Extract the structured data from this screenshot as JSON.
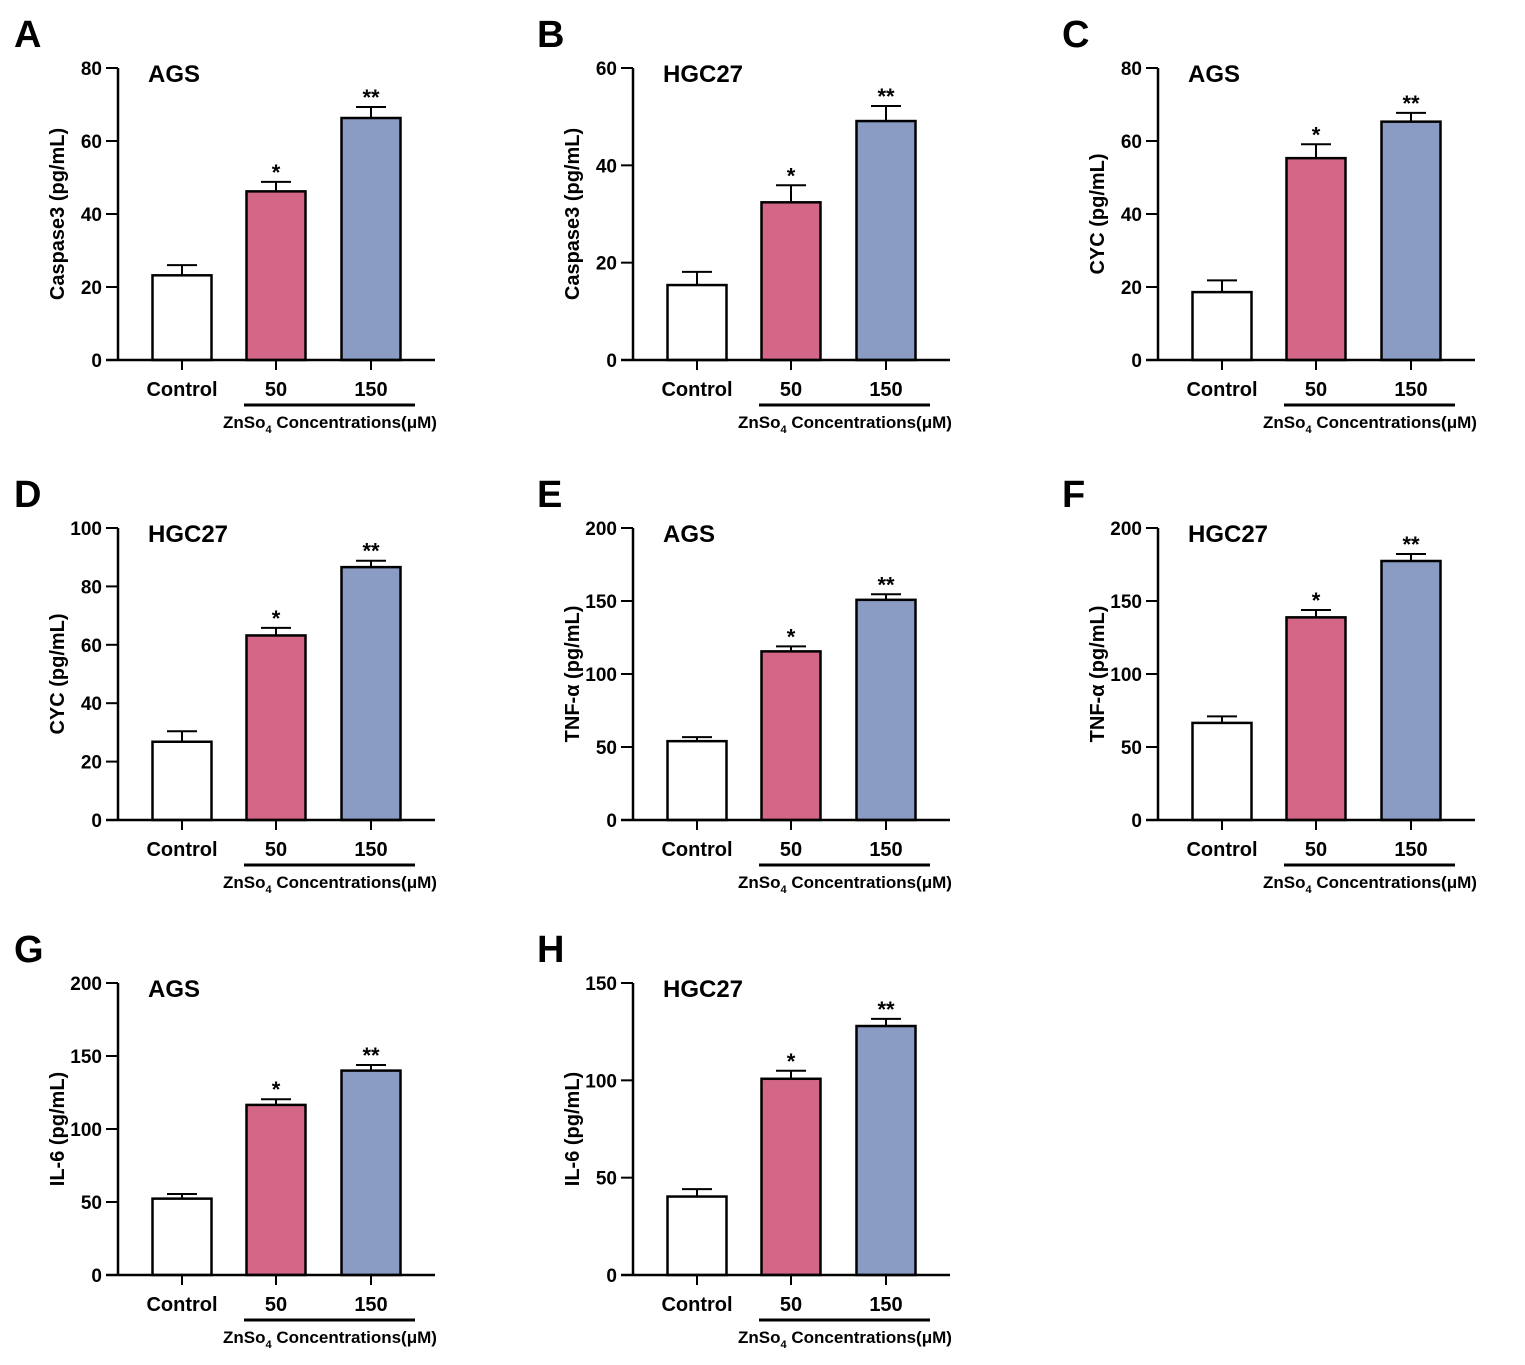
{
  "figure": {
    "colors": {
      "control": "#ffffff",
      "dose50": "#d46787",
      "dose150": "#8a9cc4",
      "axis": "#000000"
    },
    "group_label_main": "ZnSo",
    "group_label_sub": "4",
    "group_label_rest": " Concentrations(μM)"
  },
  "chart_data": [
    {
      "panel": "A",
      "type": "bar",
      "title": "AGS",
      "ylabel": "Caspase3 (pg/mL)",
      "xlabel": "ZnSo4 Concentrations(μM)",
      "categories": [
        "Control",
        "50",
        "150"
      ],
      "values": [
        23.2,
        46.2,
        66.3
      ],
      "errors": [
        2.8,
        2.6,
        3.0
      ],
      "significance": [
        "",
        "*",
        "**"
      ],
      "ylim": [
        0,
        80
      ],
      "yticks": [
        0,
        20,
        40,
        60,
        80
      ],
      "grid": false
    },
    {
      "panel": "B",
      "type": "bar",
      "title": "HGC27",
      "ylabel": "Caspase3 (pg/mL)",
      "xlabel": "ZnSo4 Concentrations(μM)",
      "categories": [
        "Control",
        "50",
        "150"
      ],
      "values": [
        15.4,
        32.4,
        49.1
      ],
      "errors": [
        2.7,
        3.5,
        3.1
      ],
      "significance": [
        "",
        "*",
        "**"
      ],
      "ylim": [
        0,
        60
      ],
      "yticks": [
        0,
        20,
        40,
        60
      ],
      "grid": false
    },
    {
      "panel": "C",
      "type": "bar",
      "title": "AGS",
      "ylabel": "CYC (pg/mL)",
      "xlabel": "ZnSo4 Concentrations(μM)",
      "categories": [
        "Control",
        "50",
        "150"
      ],
      "values": [
        18.6,
        55.3,
        65.3
      ],
      "errors": [
        3.2,
        3.8,
        2.4
      ],
      "significance": [
        "",
        "*",
        "**"
      ],
      "ylim": [
        0,
        80
      ],
      "yticks": [
        0,
        20,
        40,
        60,
        80
      ],
      "grid": false
    },
    {
      "panel": "D",
      "type": "bar",
      "title": "HGC27",
      "ylabel": "CYC (pg/mL)",
      "xlabel": "ZnSo4 Concentrations(μM)",
      "categories": [
        "Control",
        "50",
        "150"
      ],
      "values": [
        26.8,
        63.2,
        86.6
      ],
      "errors": [
        3.6,
        2.6,
        2.2
      ],
      "significance": [
        "",
        "*",
        "**"
      ],
      "ylim": [
        0,
        100
      ],
      "yticks": [
        0,
        20,
        40,
        60,
        80,
        100
      ],
      "grid": false
    },
    {
      "panel": "E",
      "type": "bar",
      "title": "AGS",
      "ylabel": "TNF-α (pg/mL)",
      "xlabel": "ZnSo4 Concentrations(μM)",
      "categories": [
        "Control",
        "50",
        "150"
      ],
      "values": [
        54.0,
        115.5,
        150.8
      ],
      "errors": [
        2.8,
        3.4,
        3.8
      ],
      "significance": [
        "",
        "*",
        "**"
      ],
      "ylim": [
        0,
        200
      ],
      "yticks": [
        0,
        50,
        100,
        150,
        200
      ],
      "grid": false
    },
    {
      "panel": "F",
      "type": "bar",
      "title": "HGC27",
      "ylabel": "TNF-α (pg/mL)",
      "xlabel": "ZnSo4 Concentrations(μM)",
      "categories": [
        "Control",
        "50",
        "150"
      ],
      "values": [
        66.5,
        138.8,
        177.4
      ],
      "errors": [
        4.5,
        5.0,
        4.8
      ],
      "significance": [
        "",
        "*",
        "**"
      ],
      "ylim": [
        0,
        200
      ],
      "yticks": [
        0,
        50,
        100,
        150,
        200
      ],
      "grid": false
    },
    {
      "panel": "G",
      "type": "bar",
      "title": "AGS",
      "ylabel": "IL-6 (pg/mL)",
      "xlabel": "ZnSo4 Concentrations(μM)",
      "categories": [
        "Control",
        "50",
        "150"
      ],
      "values": [
        52.3,
        116.5,
        140.0
      ],
      "errors": [
        3.2,
        3.9,
        3.8
      ],
      "significance": [
        "",
        "*",
        "**"
      ],
      "ylim": [
        0,
        200
      ],
      "yticks": [
        0,
        50,
        100,
        150,
        200
      ],
      "grid": false
    },
    {
      "panel": "H",
      "type": "bar",
      "title": "HGC27",
      "ylabel": "IL-6 (pg/mL)",
      "xlabel": "ZnSo4 Concentrations(μM)",
      "categories": [
        "Control",
        "50",
        "150"
      ],
      "values": [
        40.3,
        100.8,
        127.9
      ],
      "errors": [
        3.8,
        4.1,
        3.7
      ],
      "significance": [
        "",
        "*",
        "**"
      ],
      "ylim": [
        0,
        150
      ],
      "yticks": [
        0,
        50,
        100,
        150
      ],
      "grid": false
    }
  ]
}
